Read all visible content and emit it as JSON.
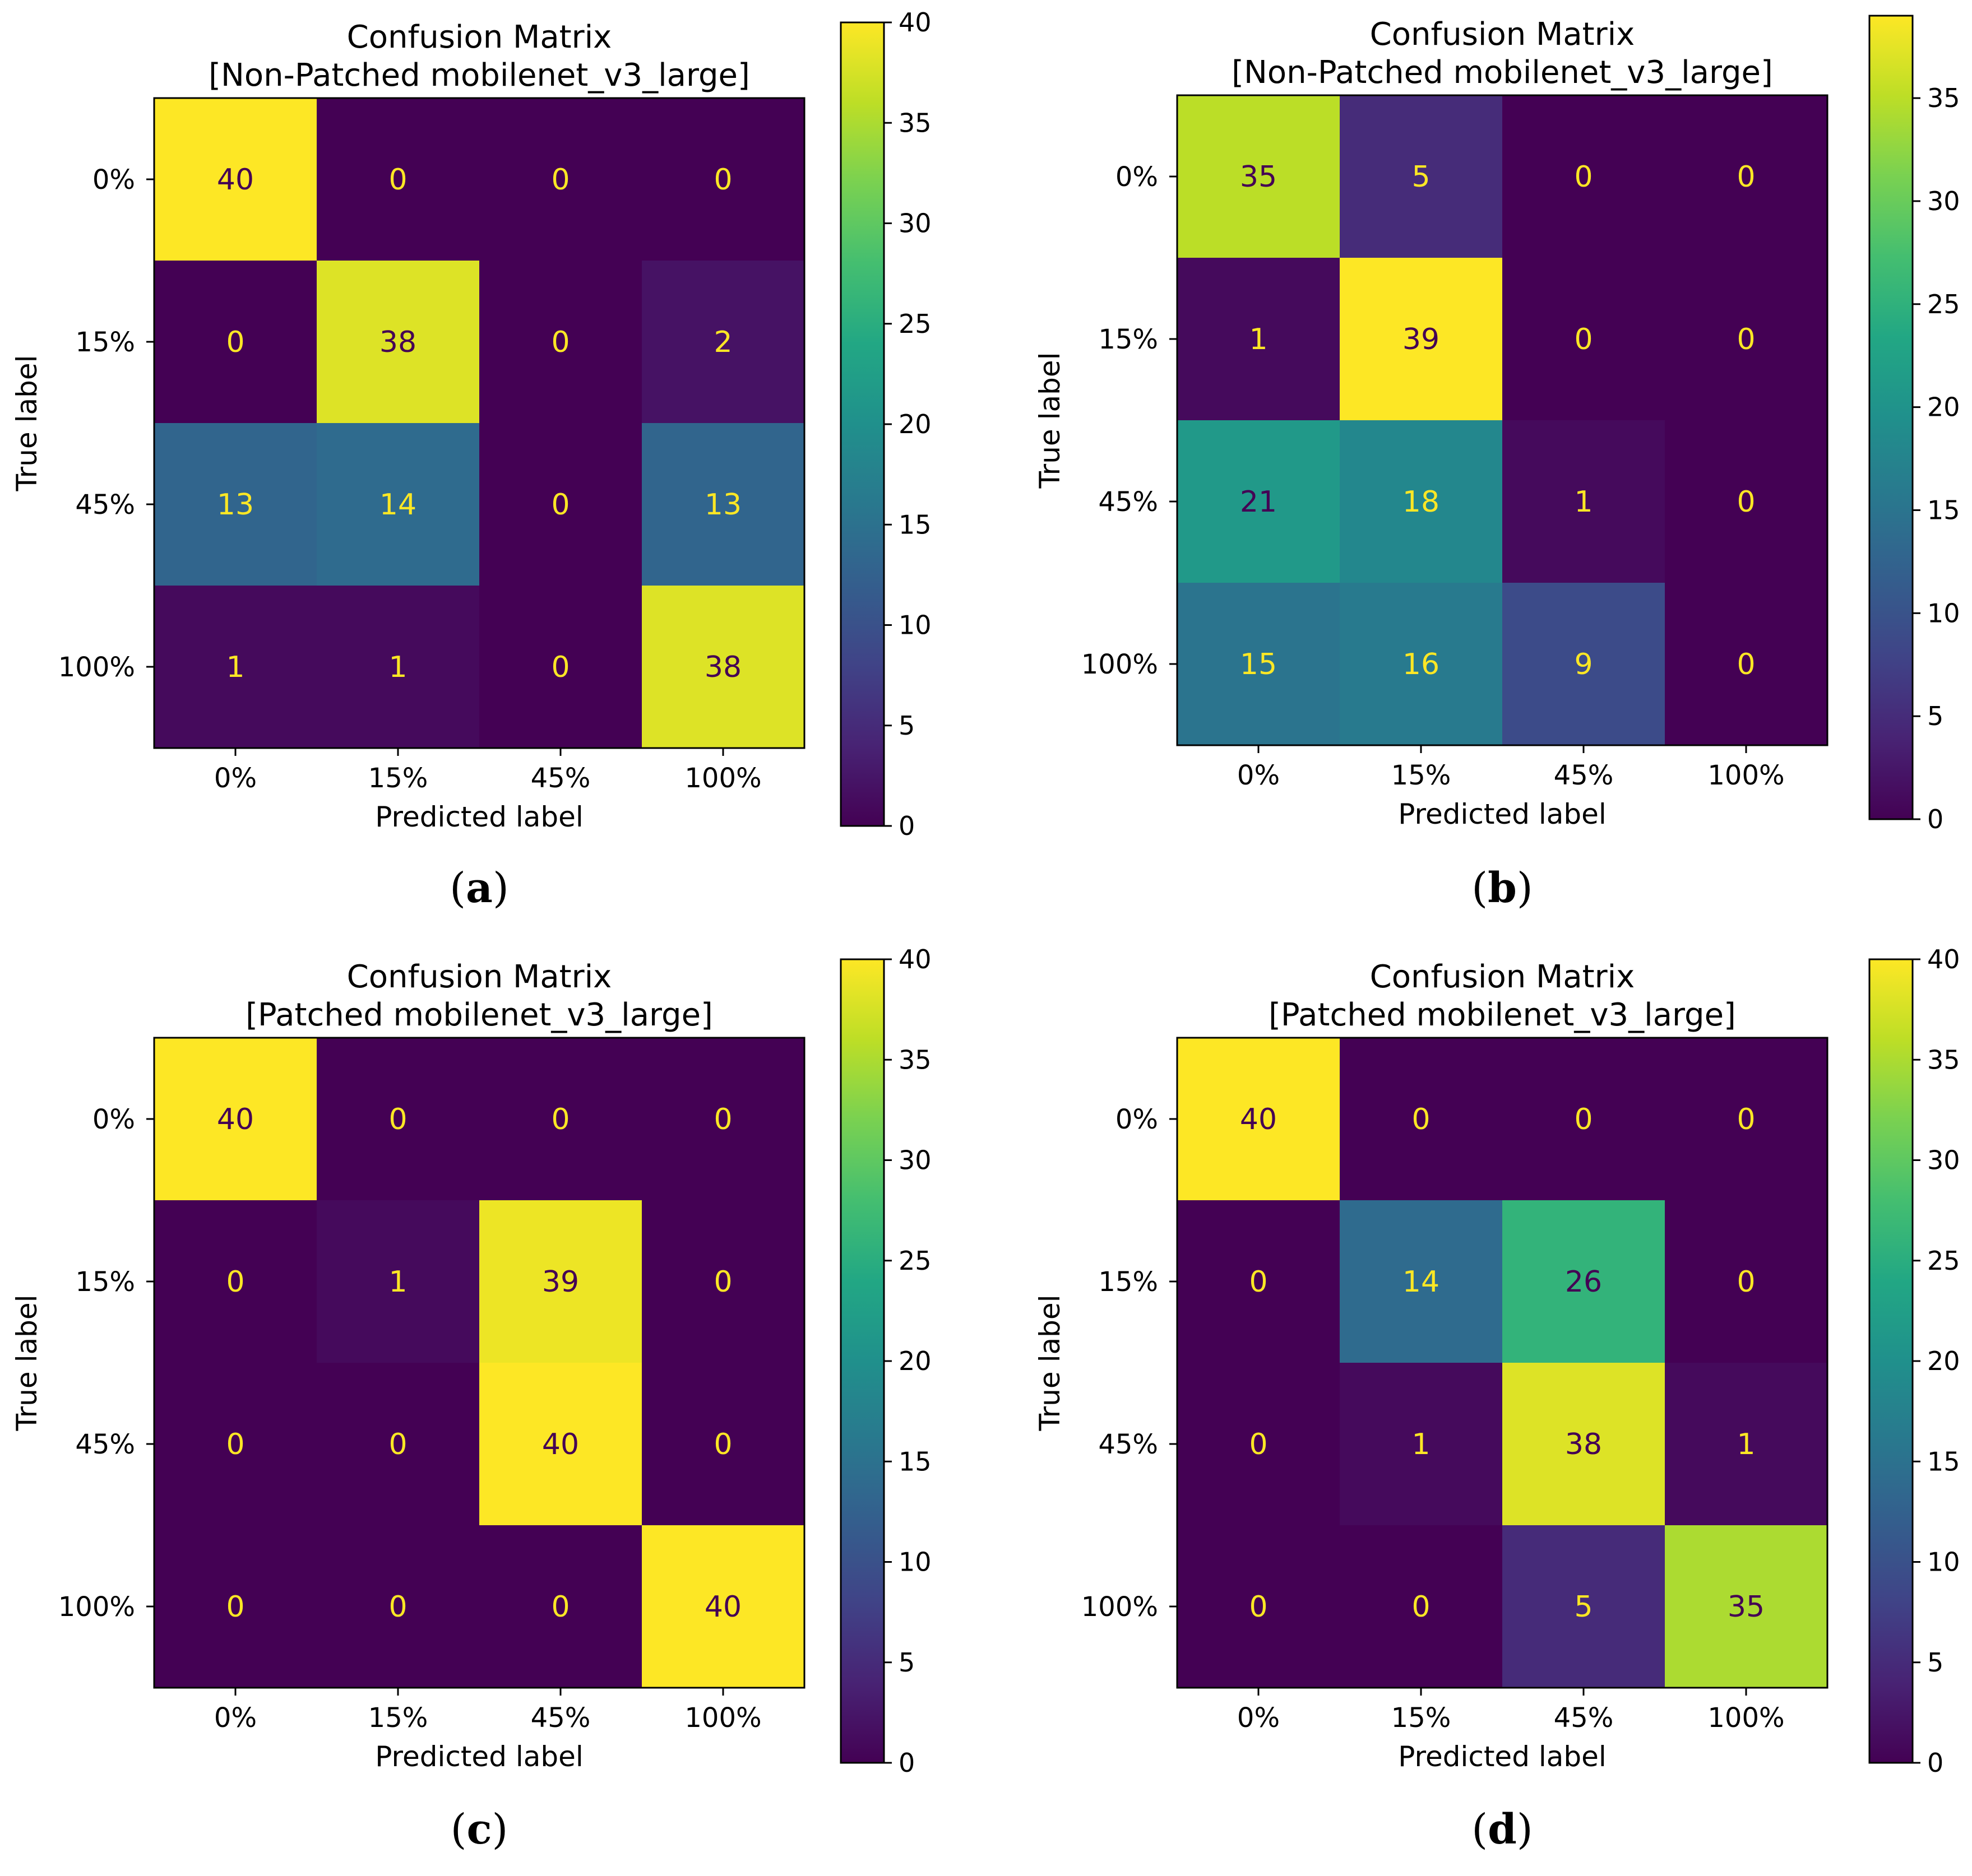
{
  "chart_data": [
    {
      "type": "heatmap",
      "panel_label": "a",
      "caption": "(a)",
      "title_line1": "Confusion Matrix",
      "title_line2": "[Non-Patched mobilenet_v3_large]",
      "xlabel": "Predicted label",
      "ylabel": "True label",
      "x_categories": [
        "0%",
        "15%",
        "45%",
        "100%"
      ],
      "y_categories": [
        "0%",
        "15%",
        "45%",
        "100%"
      ],
      "matrix": [
        [
          40,
          0,
          0,
          0
        ],
        [
          0,
          38,
          0,
          2
        ],
        [
          13,
          14,
          0,
          13
        ],
        [
          1,
          1,
          0,
          38
        ]
      ],
      "colorbar": {
        "min": 0,
        "max": 40,
        "ticks": [
          0,
          5,
          10,
          15,
          20,
          25,
          30,
          35,
          40
        ]
      },
      "colormap": "viridis"
    },
    {
      "type": "heatmap",
      "panel_label": "b",
      "caption": "(b)",
      "title_line1": "Confusion Matrix",
      "title_line2": "[Non-Patched mobilenet_v3_large]",
      "xlabel": "Predicted label",
      "ylabel": "True label",
      "x_categories": [
        "0%",
        "15%",
        "45%",
        "100%"
      ],
      "y_categories": [
        "0%",
        "15%",
        "45%",
        "100%"
      ],
      "matrix": [
        [
          35,
          5,
          0,
          0
        ],
        [
          1,
          39,
          0,
          0
        ],
        [
          21,
          18,
          1,
          0
        ],
        [
          15,
          16,
          9,
          0
        ]
      ],
      "colorbar": {
        "min": 0,
        "max": 39,
        "ticks": [
          0,
          5,
          10,
          15,
          20,
          25,
          30,
          35
        ]
      },
      "colormap": "viridis"
    },
    {
      "type": "heatmap",
      "panel_label": "c",
      "caption": "(c)",
      "title_line1": "Confusion Matrix",
      "title_line2": "[Patched mobilenet_v3_large]",
      "xlabel": "Predicted label",
      "ylabel": "True label",
      "x_categories": [
        "0%",
        "15%",
        "45%",
        "100%"
      ],
      "y_categories": [
        "0%",
        "15%",
        "45%",
        "100%"
      ],
      "matrix": [
        [
          40,
          0,
          0,
          0
        ],
        [
          0,
          1,
          39,
          0
        ],
        [
          0,
          0,
          40,
          0
        ],
        [
          0,
          0,
          0,
          40
        ]
      ],
      "colorbar": {
        "min": 0,
        "max": 40,
        "ticks": [
          0,
          5,
          10,
          15,
          20,
          25,
          30,
          35,
          40
        ]
      },
      "colormap": "viridis"
    },
    {
      "type": "heatmap",
      "panel_label": "d",
      "caption": "(d)",
      "title_line1": "Confusion Matrix",
      "title_line2": "[Patched mobilenet_v3_large]",
      "xlabel": "Predicted label",
      "ylabel": "True label",
      "x_categories": [
        "0%",
        "15%",
        "45%",
        "100%"
      ],
      "y_categories": [
        "0%",
        "15%",
        "45%",
        "100%"
      ],
      "matrix": [
        [
          40,
          0,
          0,
          0
        ],
        [
          0,
          14,
          26,
          0
        ],
        [
          0,
          1,
          38,
          1
        ],
        [
          0,
          0,
          5,
          35
        ]
      ],
      "colorbar": {
        "min": 0,
        "max": 40,
        "ticks": [
          0,
          5,
          10,
          15,
          20,
          25,
          30,
          35,
          40
        ]
      },
      "colormap": "viridis"
    }
  ]
}
